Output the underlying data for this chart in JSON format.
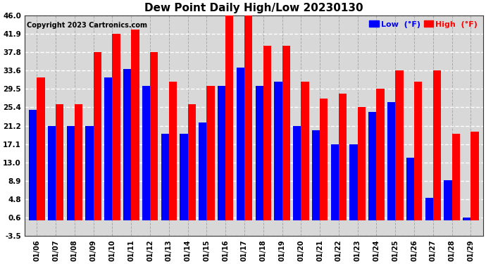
{
  "title": "Dew Point Daily High/Low 20230130",
  "copyright": "Copyright 2023 Cartronics.com",
  "dates": [
    "01/06",
    "01/07",
    "01/08",
    "01/09",
    "01/10",
    "01/11",
    "01/12",
    "01/13",
    "01/14",
    "01/15",
    "01/16",
    "01/17",
    "01/18",
    "01/19",
    "01/20",
    "01/21",
    "01/22",
    "01/23",
    "01/24",
    "01/25",
    "01/26",
    "01/27",
    "01/28",
    "01/29"
  ],
  "high": [
    32.0,
    26.0,
    26.0,
    37.8,
    41.9,
    42.8,
    37.8,
    31.1,
    26.0,
    30.2,
    46.0,
    46.0,
    39.2,
    39.2,
    31.1,
    27.4,
    28.4,
    25.4,
    29.5,
    33.6,
    31.1,
    33.6,
    19.4,
    19.9
  ],
  "low": [
    24.8,
    21.2,
    21.2,
    21.2,
    32.0,
    34.0,
    30.2,
    19.4,
    19.4,
    22.0,
    30.2,
    34.2,
    30.2,
    31.1,
    21.2,
    20.3,
    17.1,
    17.1,
    24.3,
    26.6,
    14.0,
    5.0,
    9.0,
    0.6
  ],
  "ylim": [
    -3.5,
    46.0
  ],
  "yticks": [
    -3.5,
    0.6,
    4.8,
    8.9,
    13.0,
    17.1,
    21.2,
    25.4,
    29.5,
    33.6,
    37.8,
    41.9,
    46.0
  ],
  "high_color": "#ff0000",
  "low_color": "#0000ff",
  "bg_color": "#ffffff",
  "plot_bg": "#d8d8d8",
  "grid_color": "#aaaaaa",
  "title_fontsize": 11,
  "copyright_fontsize": 7,
  "legend_low_label": "Low  (°F)",
  "legend_high_label": "High  (°F)"
}
